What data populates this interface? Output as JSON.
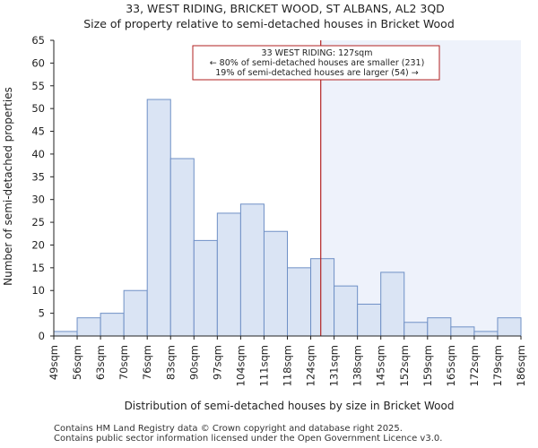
{
  "chart_data": {
    "type": "bar",
    "title": "33, WEST RIDING, BRICKET WOOD, ST ALBANS, AL2 3QD",
    "subtitle": "Size of property relative to semi-detached houses in Bricket Wood",
    "xlabel": "Distribution of semi-detached houses by size in Bricket Wood",
    "ylabel": "Number of semi-detached properties",
    "ylim": [
      0,
      65
    ],
    "yticks": [
      0,
      5,
      10,
      15,
      20,
      25,
      30,
      35,
      40,
      45,
      50,
      55,
      60,
      65
    ],
    "bin_edges": [
      49,
      56,
      63,
      70,
      76,
      83,
      90,
      97,
      104,
      111,
      118,
      124,
      131,
      138,
      145,
      152,
      159,
      165,
      172,
      179,
      186
    ],
    "tick_labels": [
      "49sqm",
      "56sqm",
      "63sqm",
      "70sqm",
      "76sqm",
      "83sqm",
      "90sqm",
      "97sqm",
      "104sqm",
      "111sqm",
      "118sqm",
      "124sqm",
      "131sqm",
      "138sqm",
      "145sqm",
      "152sqm",
      "159sqm",
      "165sqm",
      "172sqm",
      "179sqm",
      "186sqm"
    ],
    "values": [
      1,
      4,
      5,
      10,
      52,
      39,
      21,
      27,
      29,
      23,
      15,
      17,
      11,
      7,
      14,
      3,
      4,
      2,
      1,
      4
    ],
    "property_size": 127,
    "annotation": {
      "line1": "33 WEST RIDING: 127sqm",
      "line2": "← 80% of semi-detached houses are smaller (231)",
      "line3": "19% of semi-detached houses are larger (54) →"
    },
    "grid": false,
    "colors": {
      "bar_fill": "#dae4f4",
      "bar_edge": "#6f90c6",
      "highlight_region": "#eef2fb",
      "marker_line": "#b22222"
    }
  },
  "footer": {
    "line1": "Contains HM Land Registry data © Crown copyright and database right 2025.",
    "line2": "Contains public sector information licensed under the Open Government Licence v3.0."
  }
}
